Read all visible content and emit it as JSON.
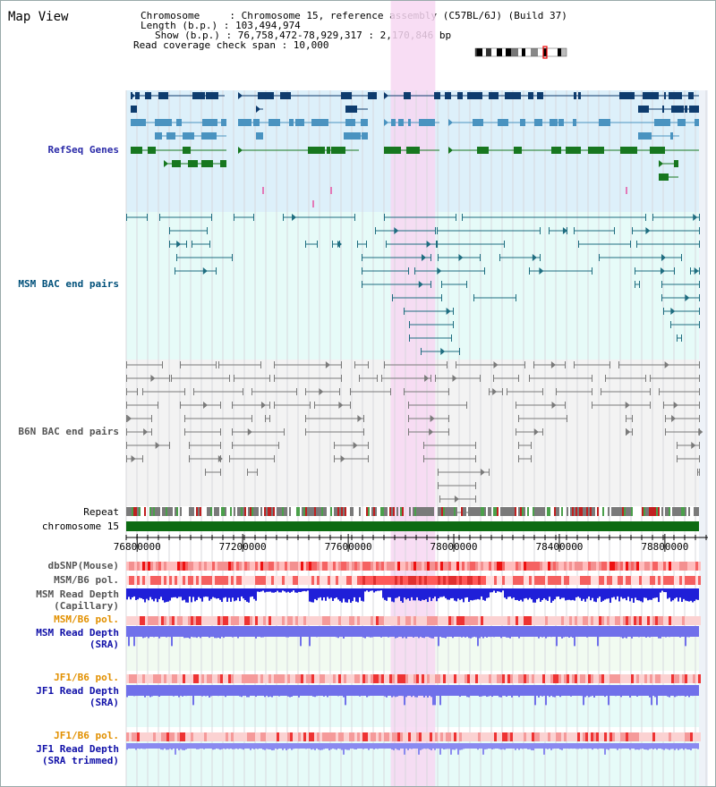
{
  "title": "Map View",
  "info": {
    "chromosome_line": "Chromosome     : Chromosome 15, reference assembly (C57BL/6J) (Build 37)",
    "length_line": "Length (b.p.) : 103,494,974",
    "show_line": "Show (b.p.) : 76,758,472-78,929,317 : 2,170,846 bp",
    "span_line": "Read coverage check span : 10,000"
  },
  "tracks": {
    "refseq": "RefSeq Genes",
    "msm_bac": "MSM BAC end pairs",
    "b6n_bac": "B6N BAC end pairs",
    "repeat": "Repeat",
    "chromosome": "chromosome 15",
    "dbsnp": "dbSNP(Mouse)",
    "msm_b6_pol": "MSM/B6 pol.",
    "msm_depth_cap_1": "MSM Read Depth",
    "msm_depth_cap_2": "(Capillary)",
    "msm_b6_pol_sra": "MSM/B6 pol.",
    "msm_depth_sra_1": "MSM Read Depth",
    "msm_depth_sra_2": "(SRA)",
    "jf1_b6_pol": "JF1/B6 pol.",
    "jf1_depth_1": "JF1 Read Depth",
    "jf1_depth_2": "(SRA)",
    "jf1_b6_pol_trim": "JF1/B6 pol.",
    "jf1_trim_1": "JF1 Read Depth",
    "jf1_trim_2": "(SRA trimmed)"
  },
  "axis": {
    "ticks": [
      "76800000",
      "77200000",
      "77600000",
      "78000000",
      "78400000",
      "78800000"
    ],
    "view_start": 76758472,
    "view_end": 78929317,
    "highlight": [
      77761000,
      77930000
    ]
  },
  "colors": {
    "refseq_bg": "#ddf0fa",
    "msm_bg": "#e6fbf8",
    "b6n_bg": "#f3f3f3",
    "highlight": "#f7d7f2",
    "dark_blue": "#0e3c6e",
    "mid_blue": "#4a93c0",
    "green": "#17771f",
    "teal": "#1e6d80",
    "gray": "#7a7a7a",
    "chromosome_bar": "#0d6b12",
    "depth_capillary": "#1f1fd8",
    "depth_sra": "#7070ea",
    "pol_label": "#e29000",
    "depth_label": "#1010a8",
    "track_label": "#00507a",
    "gene_label": "#2a2aa8"
  }
}
